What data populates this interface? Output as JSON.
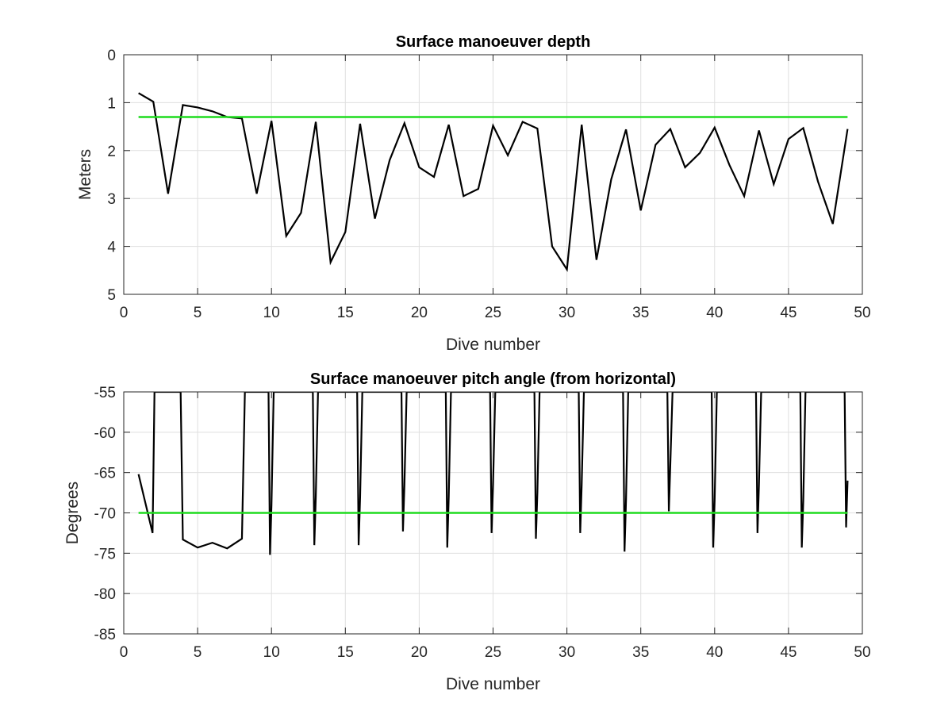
{
  "chart_data": [
    {
      "type": "line",
      "title": "Surface manoeuver depth",
      "xlabel": "Dive number",
      "ylabel": "Meters",
      "xlim": [
        0,
        50
      ],
      "ylim": [
        0,
        5
      ],
      "y_reversed": true,
      "grid": true,
      "xticks": [
        "0",
        "5",
        "10",
        "15",
        "20",
        "25",
        "30",
        "35",
        "40",
        "45",
        "50"
      ],
      "yticks": [
        "0",
        "1",
        "2",
        "3",
        "4",
        "5"
      ],
      "series": [
        {
          "color": "#000000",
          "x": [
            1,
            2,
            3,
            4,
            5,
            6,
            7,
            8,
            9,
            10,
            11,
            12,
            13,
            14,
            15,
            16,
            17,
            18,
            19,
            20,
            21,
            22,
            23,
            24,
            25,
            26,
            27,
            28,
            29,
            30,
            31,
            32,
            33,
            34,
            35,
            36,
            37,
            38,
            39,
            40,
            41,
            42,
            43,
            44,
            45,
            46,
            47,
            48,
            49
          ],
          "values": [
            0.8,
            0.98,
            2.9,
            1.05,
            1.1,
            1.18,
            1.3,
            1.33,
            2.9,
            1.38,
            3.78,
            3.3,
            1.4,
            4.33,
            3.7,
            1.44,
            3.42,
            2.2,
            1.43,
            2.35,
            2.55,
            1.46,
            2.95,
            2.8,
            1.48,
            2.1,
            1.4,
            1.54,
            4.0,
            4.48,
            1.46,
            4.28,
            2.6,
            1.56,
            3.25,
            1.88,
            1.55,
            2.35,
            2.05,
            1.52,
            2.3,
            2.95,
            1.58,
            2.7,
            1.76,
            1.53,
            2.65,
            3.53,
            1.55
          ]
        },
        {
          "color": "#1edc1e",
          "x": [
            1,
            49
          ],
          "values": [
            1.3,
            1.3
          ]
        }
      ]
    },
    {
      "type": "line",
      "title": "Surface manoeuver pitch angle (from horizontal)",
      "xlabel": "Dive number",
      "ylabel": "Degrees",
      "xlim": [
        0,
        50
      ],
      "ylim": [
        -85,
        -55
      ],
      "grid": true,
      "xticks": [
        "0",
        "5",
        "10",
        "15",
        "20",
        "25",
        "30",
        "35",
        "40",
        "45",
        "50"
      ],
      "yticks": [
        "-55",
        "-60",
        "-65",
        "-70",
        "-75",
        "-80",
        "-85"
      ],
      "series": [
        {
          "color": "#000000",
          "x": [
            1,
            1.95,
            2,
            2.08,
            2.2,
            3.85,
            4,
            5,
            6,
            7,
            8,
            8.2,
            9.8,
            9.9,
            10,
            10.15,
            12.8,
            12.9,
            13,
            13.15,
            15.8,
            15.9,
            16,
            16.15,
            18.8,
            18.9,
            19,
            19.15,
            21.8,
            21.9,
            22,
            22.15,
            24.8,
            24.9,
            25,
            25.15,
            27.8,
            27.9,
            28,
            28.15,
            30.8,
            30.9,
            31,
            31.15,
            33.8,
            33.9,
            34,
            34.15,
            36.8,
            36.9,
            37,
            37.15,
            39.8,
            39.9,
            40,
            40.15,
            42.8,
            42.9,
            43,
            43.15,
            45.8,
            45.9,
            46,
            46.15,
            48.8,
            48.9,
            49
          ],
          "values": [
            -65.2,
            -72.5,
            -66,
            -55,
            -55,
            -55,
            -73.3,
            -74.3,
            -73.7,
            -74.4,
            -73.2,
            -55,
            -55,
            -75.2,
            -69,
            -55,
            -55,
            -74,
            -68,
            -55,
            -55,
            -74,
            -68,
            -55,
            -55,
            -72.3,
            -66.5,
            -55,
            -55,
            -74.3,
            -68,
            -55,
            -55,
            -72.5,
            -66.5,
            -55,
            -55,
            -73.2,
            -67.5,
            -55,
            -55,
            -72.5,
            -66.5,
            -55,
            -55,
            -74.8,
            -68.5,
            -55,
            -55,
            -69.8,
            -64,
            -55,
            -55,
            -74.3,
            -68.5,
            -55,
            -55,
            -72.5,
            -66.5,
            -55,
            -55,
            -74.3,
            -68.5,
            -55,
            -55,
            -71.8,
            -66
          ]
        },
        {
          "color": "#1edc1e",
          "x": [
            1,
            49
          ],
          "values": [
            -70,
            -70
          ]
        }
      ]
    }
  ]
}
